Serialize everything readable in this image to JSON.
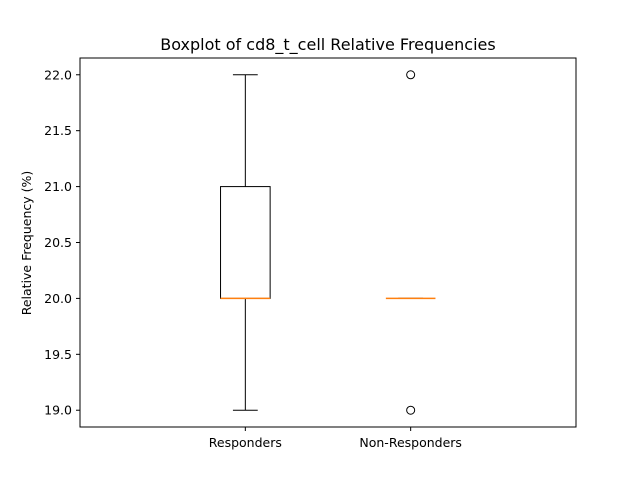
{
  "chart_data": {
    "type": "boxplot",
    "title": "Boxplot of cd8_t_cell Relative Frequencies",
    "xlabel": "",
    "ylabel": "Relative Frequency (%)",
    "ylim": [
      18.85,
      22.15
    ],
    "yticks": [
      "19.0",
      "19.5",
      "20.0",
      "20.5",
      "21.0",
      "21.5",
      "22.0"
    ],
    "ytick_values": [
      19.0,
      19.5,
      20.0,
      20.5,
      21.0,
      21.5,
      22.0
    ],
    "categories": [
      "Responders",
      "Non-Responders"
    ],
    "boxes": [
      {
        "label": "Responders",
        "whisker_low": 19.0,
        "q1": 20.0,
        "median": 20.0,
        "q3": 21.0,
        "whisker_high": 22.0,
        "outliers": []
      },
      {
        "label": "Non-Responders",
        "whisker_low": 20.0,
        "q1": 20.0,
        "median": 20.0,
        "q3": 20.0,
        "whisker_high": 20.0,
        "outliers": [
          19.0,
          22.0
        ]
      }
    ],
    "grid": false,
    "colors": {
      "box": "#000000",
      "median": "#ff7f0e",
      "outlier": "#000000"
    }
  }
}
